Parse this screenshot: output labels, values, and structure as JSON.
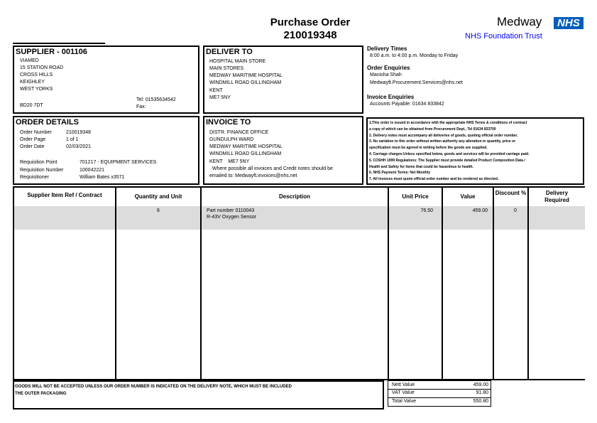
{
  "header": {
    "title": "Purchase Order",
    "order_number": "210019348",
    "logo_text": "Medway",
    "logo_badge": "NHS",
    "trust": "NHS Foundation Trust",
    "brand_color": "#005EB8",
    "trust_color": "#0000FF"
  },
  "supplier": {
    "heading": "SUPPLIER - 001106",
    "lines": [
      "VIAMED",
      "15 STATION ROAD",
      "CROSS HILLS",
      "KEIGHLEY",
      "WEST YORKS"
    ],
    "postcode": "BD20 7DT",
    "tel": "Tel: 01535634542",
    "fax": "Fax:"
  },
  "deliver": {
    "heading": "DELIVER TO",
    "lines": [
      "HOSPITAL MAIN STORE",
      "MAIN STORES",
      "MEDWAY MARITIME HOSPITAL",
      "WINDMILL ROAD GILLINGHAM",
      "KENT",
      "ME7 5NY"
    ]
  },
  "order": {
    "heading": "ORDER DETAILS",
    "rows": [
      [
        "Order Number",
        "210019348"
      ],
      [
        "Order Page",
        "1 of 1"
      ],
      [
        "Order Date",
        "02/03/2021"
      ],
      [
        "Requisition Point",
        "701217 - EQUIPMENT SERVICES"
      ],
      [
        "Requisition Number",
        "100042221"
      ],
      [
        "Requisitioner",
        "William Bates x3571"
      ]
    ]
  },
  "invoice": {
    "heading": "INVOICE TO",
    "lines": [
      "DISTR. FINANCE OFFICE",
      "GUNDULPH WARD",
      "MEDWAY MARITIME HOSPITAL",
      "WINDMILL ROAD GILLINGHAM",
      "KENT    ME7 5NY"
    ],
    "note1": "  Where possible all invoices and Credit notes should be",
    "note2": "emailed to: Medwayft.invoices@nhs.net"
  },
  "info": {
    "delivery_heading": "Delivery Times",
    "delivery_text": "8:00 a.m. to 4:00 p.m. Monday to Friday",
    "order_heading": "Order Enquiries",
    "order_name": "Manisha Shah",
    "order_email": "Medwayft.Procurement.Services@nhs.net",
    "invoice_heading": "Invoice Enquiries",
    "invoice_text": "Accounts Payable: 01634 833842"
  },
  "terms": [
    "1.This order is issued in accordance with the appropriate NHS Terms & conditions of contract",
    "a copy of which can be obtained from Procurement Dept., Tel 01634 833700",
    "2. Delivery notes must accompany all deliveries of goods, quoting official order number.",
    "3. No variation to this order without  written authority any alteration in quantity, price or",
    "specification must be agreed in writing before the goods are supplied.",
    "4. Carriage charges:Unless specified below, goods and services will be provided carriage paid.",
    "5. COSHH 1999 Regulations: The Supplier must provide detailed Product Composition Data /",
    "Health and Safety for items that could be hazardous to health.",
    "6. NHS Payment Terms: Net Monthly",
    "7. All invoices must quote official order number and be rendered as directed."
  ],
  "table": {
    "headers": [
      "Supplier Item Ref / Contract",
      "Quantity and Unit",
      "Description",
      "Unit Price",
      "Value",
      "Discount %",
      "Delivery Required"
    ],
    "rows": [
      {
        "ref": "",
        "qty": "6",
        "desc1": "Part number 0110043",
        "desc2": "R-43V Oxygen Sensor",
        "unit_price": "76.50",
        "value": "459.00",
        "discount": "0",
        "delivery": ""
      }
    ]
  },
  "footer": {
    "notice1": "GOODS WILL NOT BE ACCEPTED UNLESS OUR ORDER NUMBER IS INDICATED ON THE DELIVERY NOTE, WHICH MUST BE INCLUDED",
    "notice2": "THE OUTER PACKAGING"
  },
  "totals": [
    {
      "label": "Nett Value",
      "value": "459.00"
    },
    {
      "label": "VAT Value",
      "value": "91.80"
    },
    {
      "label": "Total Value",
      "value": "550.80"
    }
  ]
}
